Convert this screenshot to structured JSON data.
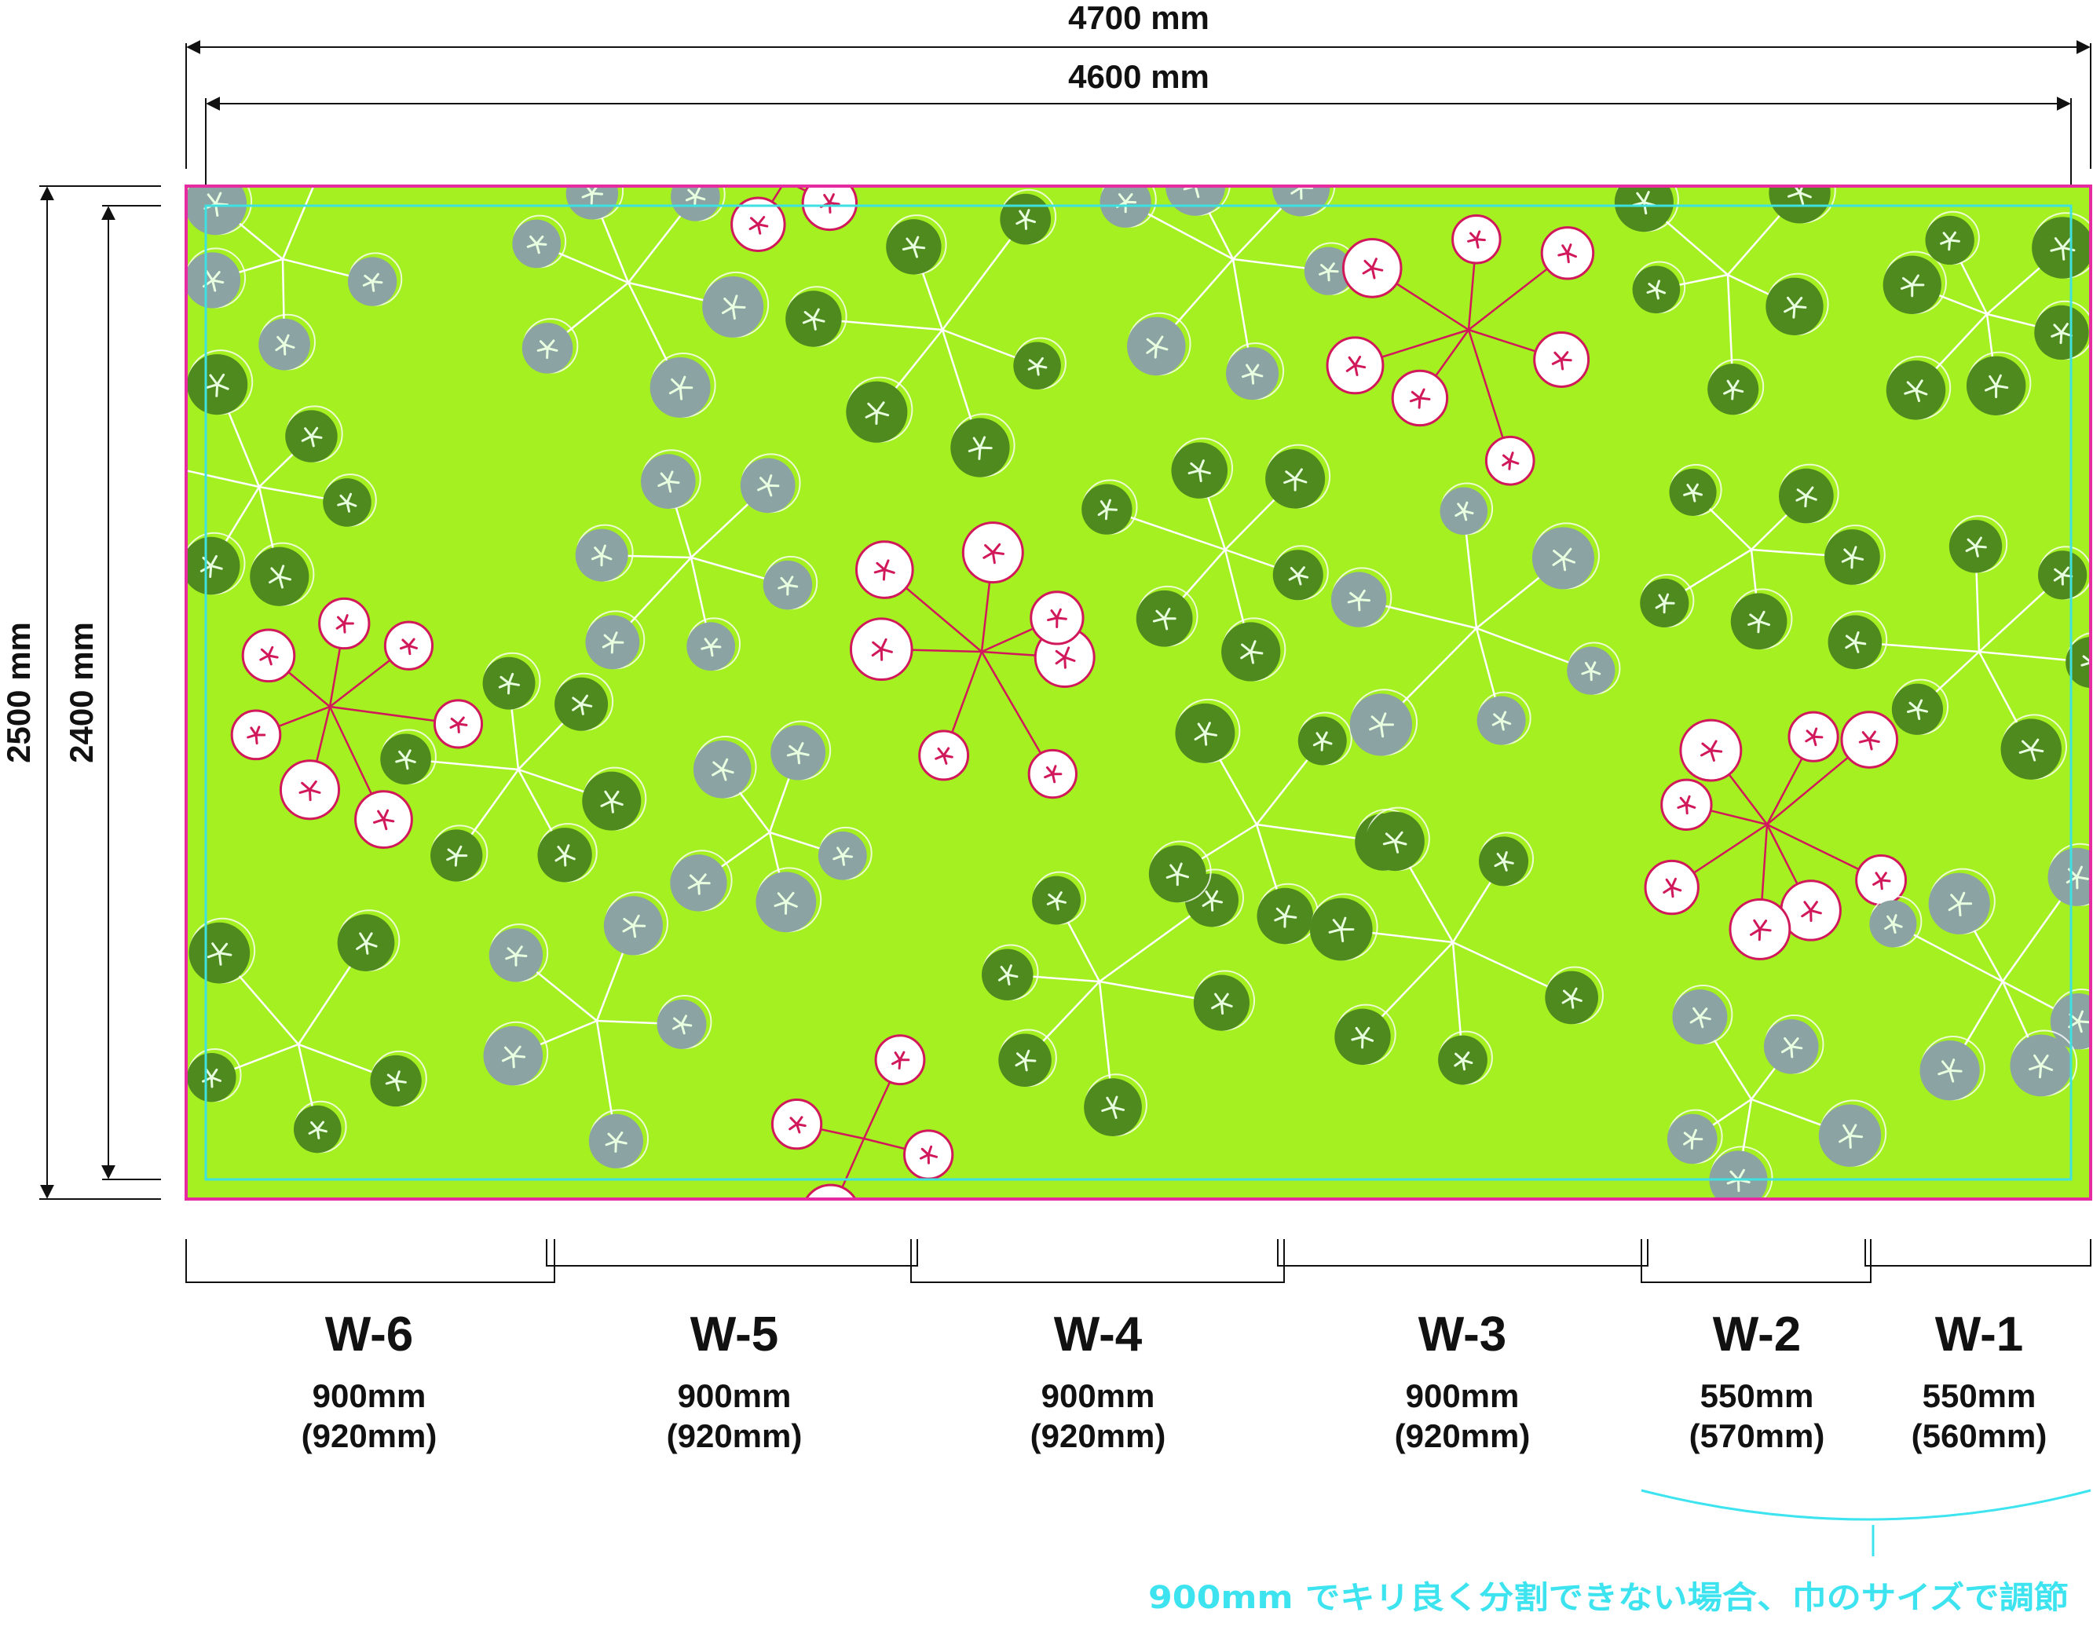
{
  "dimensions": {
    "outer_width": "4700 mm",
    "inner_width": "4600 mm",
    "outer_height": "2500 mm",
    "inner_height": "2400 mm"
  },
  "panels": [
    {
      "name": "W-6",
      "width": "900mm",
      "cut_width": "(920mm)"
    },
    {
      "name": "W-5",
      "width": "900mm",
      "cut_width": "(920mm)"
    },
    {
      "name": "W-4",
      "width": "900mm",
      "cut_width": "(920mm)"
    },
    {
      "name": "W-3",
      "width": "900mm",
      "cut_width": "(920mm)"
    },
    {
      "name": "W-2",
      "width": "550mm",
      "cut_width": "(570mm)"
    },
    {
      "name": "W-1",
      "width": "550mm",
      "cut_width": "(560mm)"
    }
  ],
  "note": "900mm でキリ良く分割できない場合、巾のサイズで調節",
  "colors": {
    "background": "#a4f020",
    "bleed_frame": "#e62aa0",
    "trim_frame": "#3ee0e0",
    "note": "#3de4f0",
    "dark_leaf": "#4e8a1e",
    "grey_leaf": "#8ba3a3",
    "berry": "#ffffff",
    "berry_rim": "#d0185a",
    "berry_stem": "#d0185a",
    "stem": "#ffffff"
  }
}
